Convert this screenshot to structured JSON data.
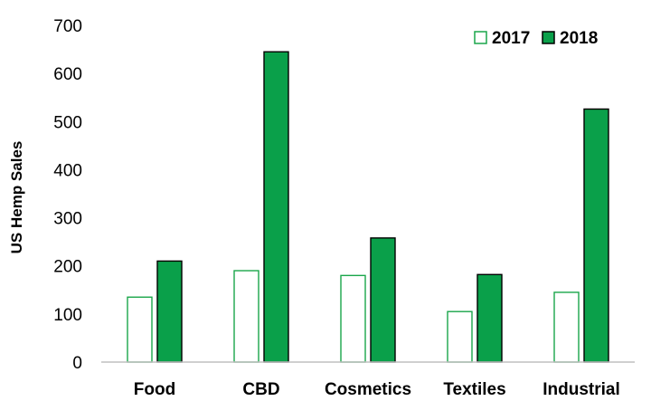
{
  "chart_data": {
    "type": "bar",
    "title": "",
    "xlabel": "",
    "ylabel": "US Hemp Sales",
    "categories": [
      "Food",
      "CBD",
      "Cosmetics",
      "Textiles",
      "Industrial"
    ],
    "series": [
      {
        "name": "2017",
        "values": [
          135,
          190,
          180,
          105,
          145
        ],
        "color": "#ffffff",
        "stroke": "#1aa64a"
      },
      {
        "name": "2018",
        "values": [
          210,
          645,
          258,
          182,
          526
        ],
        "color": "#0aa04a",
        "stroke": "#000000"
      }
    ],
    "ylim": [
      0,
      700
    ],
    "yticks": [
      0,
      100,
      200,
      300,
      400,
      500,
      600,
      700
    ],
    "grid": false,
    "legend_position": "top-right"
  }
}
